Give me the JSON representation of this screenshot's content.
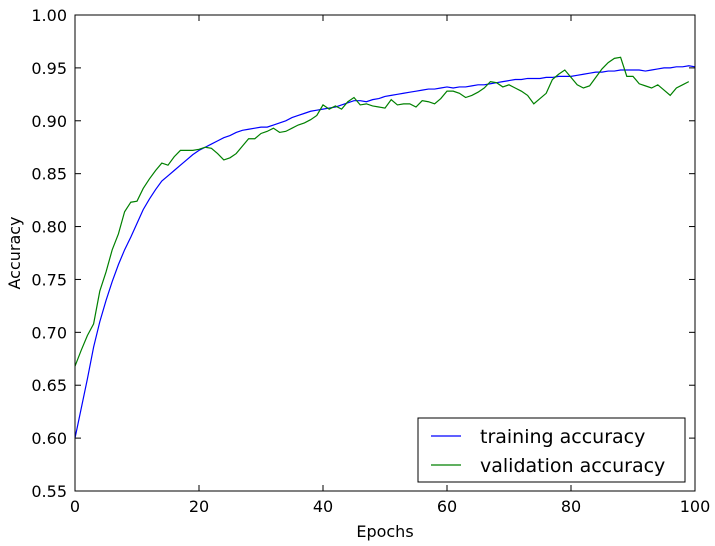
{
  "chart_data": {
    "type": "line",
    "title": "",
    "xlabel": "Epochs",
    "ylabel": "Accuracy",
    "xlim": [
      0,
      100
    ],
    "ylim": [
      0.55,
      1.0
    ],
    "xticks": [
      "0",
      "20",
      "40",
      "60",
      "80",
      "100"
    ],
    "yticks": [
      "0.55",
      "0.60",
      "0.65",
      "0.70",
      "0.75",
      "0.80",
      "0.85",
      "0.90",
      "0.95",
      "1.00"
    ],
    "grid": false,
    "legend_position": "bottom-right",
    "series": [
      {
        "name": "training accuracy",
        "color": "#0000ff",
        "values": [
          0.6,
          0.628,
          0.656,
          0.686,
          0.71,
          0.73,
          0.748,
          0.764,
          0.778,
          0.79,
          0.803,
          0.816,
          0.826,
          0.835,
          0.843,
          0.848,
          0.853,
          0.858,
          0.863,
          0.868,
          0.872,
          0.875,
          0.878,
          0.881,
          0.884,
          0.886,
          0.889,
          0.891,
          0.892,
          0.893,
          0.894,
          0.894,
          0.896,
          0.898,
          0.9,
          0.903,
          0.905,
          0.907,
          0.909,
          0.91,
          0.911,
          0.912,
          0.913,
          0.915,
          0.917,
          0.919,
          0.919,
          0.918,
          0.92,
          0.921,
          0.923,
          0.924,
          0.925,
          0.926,
          0.927,
          0.928,
          0.929,
          0.93,
          0.93,
          0.931,
          0.932,
          0.931,
          0.932,
          0.932,
          0.933,
          0.934,
          0.934,
          0.935,
          0.936,
          0.937,
          0.938,
          0.939,
          0.939,
          0.94,
          0.94,
          0.94,
          0.941,
          0.941,
          0.942,
          0.942,
          0.942,
          0.943,
          0.944,
          0.945,
          0.946,
          0.946,
          0.947,
          0.947,
          0.948,
          0.948,
          0.948,
          0.948,
          0.947,
          0.948,
          0.949,
          0.95,
          0.95,
          0.951,
          0.951,
          0.952,
          0.951
        ]
      },
      {
        "name": "validation accuracy",
        "color": "#008000",
        "values": [
          0.668,
          0.683,
          0.697,
          0.708,
          0.739,
          0.757,
          0.778,
          0.793,
          0.814,
          0.823,
          0.824,
          0.836,
          0.845,
          0.853,
          0.86,
          0.858,
          0.866,
          0.872,
          0.872,
          0.872,
          0.873,
          0.875,
          0.874,
          0.869,
          0.863,
          0.865,
          0.869,
          0.876,
          0.883,
          0.883,
          0.888,
          0.89,
          0.893,
          0.889,
          0.89,
          0.893,
          0.896,
          0.898,
          0.901,
          0.905,
          0.915,
          0.911,
          0.914,
          0.911,
          0.918,
          0.922,
          0.915,
          0.916,
          0.914,
          0.913,
          0.912,
          0.92,
          0.915,
          0.916,
          0.916,
          0.913,
          0.919,
          0.918,
          0.916,
          0.921,
          0.928,
          0.928,
          0.926,
          0.922,
          0.924,
          0.927,
          0.931,
          0.937,
          0.936,
          0.932,
          0.934,
          0.931,
          0.928,
          0.924,
          0.916,
          0.921,
          0.926,
          0.939,
          0.944,
          0.948,
          0.941,
          0.934,
          0.931,
          0.933,
          0.941,
          0.949,
          0.955,
          0.959,
          0.96,
          0.942,
          0.942,
          0.935,
          0.933,
          0.931,
          0.934,
          0.929,
          0.924,
          0.931,
          0.934,
          0.937
        ]
      }
    ]
  }
}
